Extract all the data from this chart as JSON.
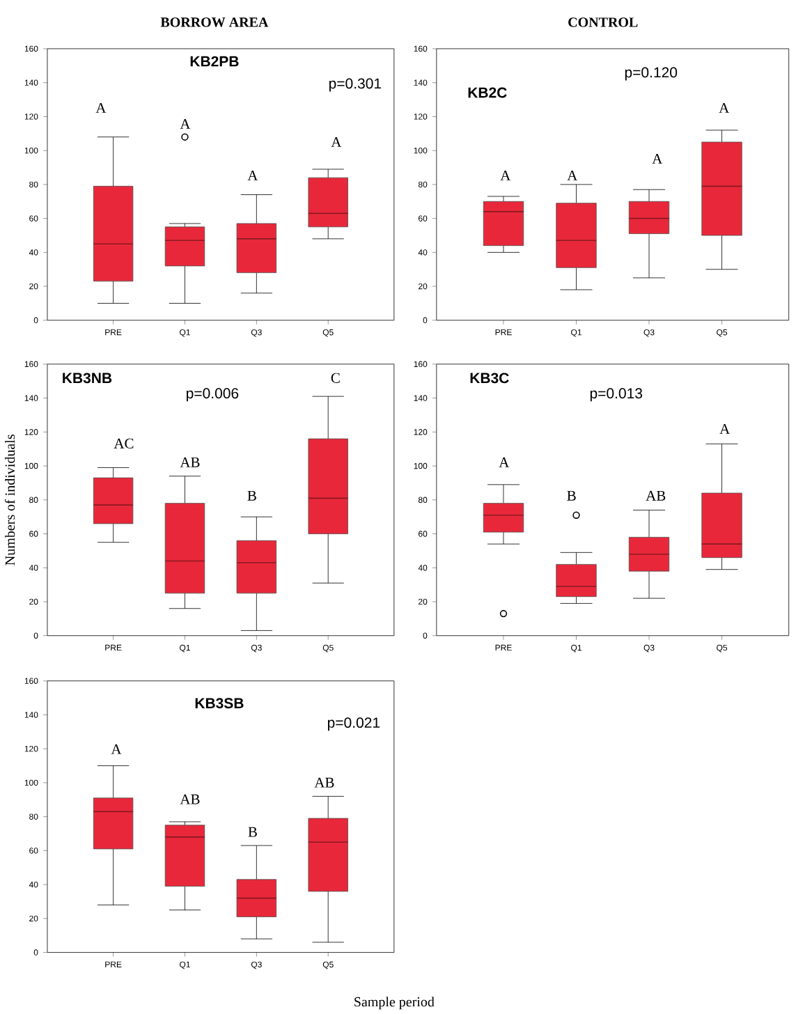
{
  "chart_data": [
    {
      "type": "box",
      "title": "KB2PB",
      "categories": [
        "PRE",
        "Q1",
        "Q3",
        "Q5"
      ],
      "ylim": [
        0,
        160
      ],
      "yticks": [
        0,
        20,
        40,
        60,
        80,
        100,
        120,
        140,
        160
      ],
      "series": [
        {
          "color": "#e8283a",
          "boxes": [
            {
              "low": 10,
              "q1": 23,
              "median": 45,
              "q3": 79,
              "high": 108
            },
            {
              "low": 10,
              "q1": 32,
              "median": 47,
              "q3": 55,
              "high": 57,
              "outliers": [
                108
              ]
            },
            {
              "low": 16,
              "q1": 28,
              "median": 48,
              "q3": 57,
              "high": 74
            },
            {
              "low": 48,
              "q1": 55,
              "median": 63,
              "q3": 84,
              "high": 89
            }
          ]
        }
      ],
      "annotations": [
        "BORROW AREA",
        "p=0.301",
        "A",
        "A",
        "A",
        "A"
      ]
    },
    {
      "type": "box",
      "title": "KB2C",
      "categories": [
        "PRE",
        "Q1",
        "Q3",
        "Q5"
      ],
      "ylim": [
        0,
        160
      ],
      "yticks": [
        0,
        20,
        40,
        60,
        80,
        100,
        120,
        140,
        160
      ],
      "series": [
        {
          "color": "#e8283a",
          "boxes": [
            {
              "low": 40,
              "q1": 44,
              "median": 64,
              "q3": 70,
              "high": 73
            },
            {
              "low": 18,
              "q1": 31,
              "median": 47,
              "q3": 69,
              "high": 80
            },
            {
              "low": 25,
              "q1": 51,
              "median": 60,
              "q3": 70,
              "high": 77
            },
            {
              "low": 30,
              "q1": 50,
              "median": 79,
              "q3": 105,
              "high": 112
            }
          ]
        }
      ],
      "annotations": [
        "CONTROL",
        "p=0.120",
        "A",
        "A",
        "A",
        "A"
      ]
    },
    {
      "type": "box",
      "title": "KB3NB",
      "ylabel": "Numbers of individuals",
      "categories": [
        "PRE",
        "Q1",
        "Q3",
        "Q5"
      ],
      "ylim": [
        0,
        160
      ],
      "yticks": [
        0,
        20,
        40,
        60,
        80,
        100,
        120,
        140,
        160
      ],
      "series": [
        {
          "color": "#e8283a",
          "boxes": [
            {
              "low": 55,
              "q1": 66,
              "median": 77,
              "q3": 93,
              "high": 99
            },
            {
              "low": 16,
              "q1": 25,
              "median": 44,
              "q3": 78,
              "high": 94
            },
            {
              "low": 3,
              "q1": 25,
              "median": 43,
              "q3": 56,
              "high": 70
            },
            {
              "low": 31,
              "q1": 60,
              "median": 81,
              "q3": 116,
              "high": 141
            }
          ]
        }
      ],
      "annotations": [
        "p=0.006",
        "AC",
        "AB",
        "B",
        "C"
      ]
    },
    {
      "type": "box",
      "title": "KB3C",
      "categories": [
        "PRE",
        "Q1",
        "Q3",
        "Q5"
      ],
      "ylim": [
        0,
        160
      ],
      "yticks": [
        0,
        20,
        40,
        60,
        80,
        100,
        120,
        140,
        160
      ],
      "series": [
        {
          "color": "#e8283a",
          "boxes": [
            {
              "low": 54,
              "q1": 61,
              "median": 71,
              "q3": 78,
              "high": 89,
              "outliers": [
                13
              ]
            },
            {
              "low": 19,
              "q1": 23,
              "median": 29,
              "q3": 42,
              "high": 49,
              "outliers": [
                71
              ]
            },
            {
              "low": 22,
              "q1": 38,
              "median": 48,
              "q3": 58,
              "high": 74
            },
            {
              "low": 39,
              "q1": 46,
              "median": 54,
              "q3": 84,
              "high": 113
            }
          ]
        }
      ],
      "annotations": [
        "p=0.013",
        "A",
        "B",
        "AB",
        "A"
      ]
    },
    {
      "type": "box",
      "title": "KB3SB",
      "xlabel": "Sample period",
      "categories": [
        "PRE",
        "Q1",
        "Q3",
        "Q5"
      ],
      "ylim": [
        0,
        160
      ],
      "yticks": [
        0,
        20,
        40,
        60,
        80,
        100,
        120,
        140,
        160
      ],
      "series": [
        {
          "color": "#e8283a",
          "boxes": [
            {
              "low": 28,
              "q1": 61,
              "median": 83,
              "q3": 91,
              "high": 110
            },
            {
              "low": 25,
              "q1": 39,
              "median": 68,
              "q3": 75,
              "high": 77
            },
            {
              "low": 8,
              "q1": 21,
              "median": 32,
              "q3": 43,
              "high": 63
            },
            {
              "low": 6,
              "q1": 36,
              "median": 65,
              "q3": 79,
              "high": 92
            }
          ]
        }
      ],
      "annotations": [
        "p=0.021",
        "A",
        "AB",
        "B",
        "AB"
      ]
    }
  ]
}
